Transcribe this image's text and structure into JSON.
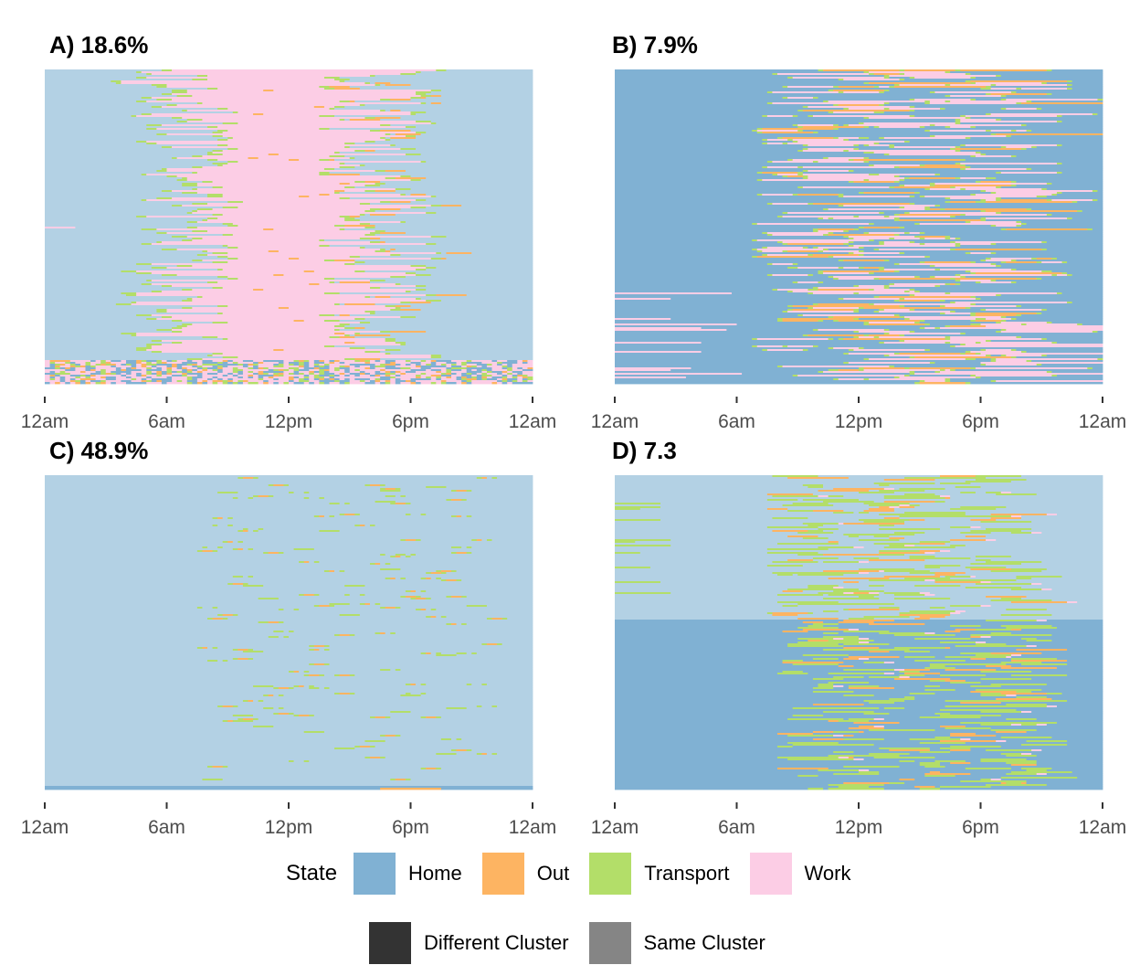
{
  "colors": {
    "home": "#80b1d3",
    "home_light": "#b3d1e4",
    "out": "#fdb462",
    "transport": "#b3de69",
    "work": "#fccde5",
    "different_cluster": "#333333",
    "same_cluster": "#858585"
  },
  "chart_data": [
    {
      "type": "heatmap",
      "title": "A) 18.6%",
      "x_ticks": [
        "12am",
        "6am",
        "12pm",
        "6pm",
        "12am"
      ],
      "x_range_hours": [
        0,
        24
      ],
      "pattern": "work"
    },
    {
      "type": "heatmap",
      "title": "B) 7.9%",
      "x_ticks": [
        "12am",
        "6am",
        "12pm",
        "6pm",
        "12am"
      ],
      "x_range_hours": [
        0,
        24
      ],
      "pattern": "mixed-work"
    },
    {
      "type": "heatmap",
      "title": "C) 48.9%",
      "x_ticks": [
        "12am",
        "6am",
        "12pm",
        "6pm",
        "12am"
      ],
      "x_range_hours": [
        0,
        24
      ],
      "pattern": "home"
    },
    {
      "type": "heatmap",
      "title": "D) 7.3",
      "x_ticks": [
        "12am",
        "6am",
        "12pm",
        "6pm",
        "12am"
      ],
      "x_range_hours": [
        0,
        24
      ],
      "pattern": "transport"
    }
  ],
  "legend": {
    "state_title": "State",
    "states": [
      {
        "label": "Home",
        "color": "#80b1d3"
      },
      {
        "label": "Out",
        "color": "#fdb462"
      },
      {
        "label": "Transport",
        "color": "#b3de69"
      },
      {
        "label": "Work",
        "color": "#fccde5"
      }
    ],
    "clusters": [
      {
        "label": "Different Cluster",
        "color": "#333333"
      },
      {
        "label": "Same Cluster",
        "color": "#858585"
      }
    ]
  }
}
